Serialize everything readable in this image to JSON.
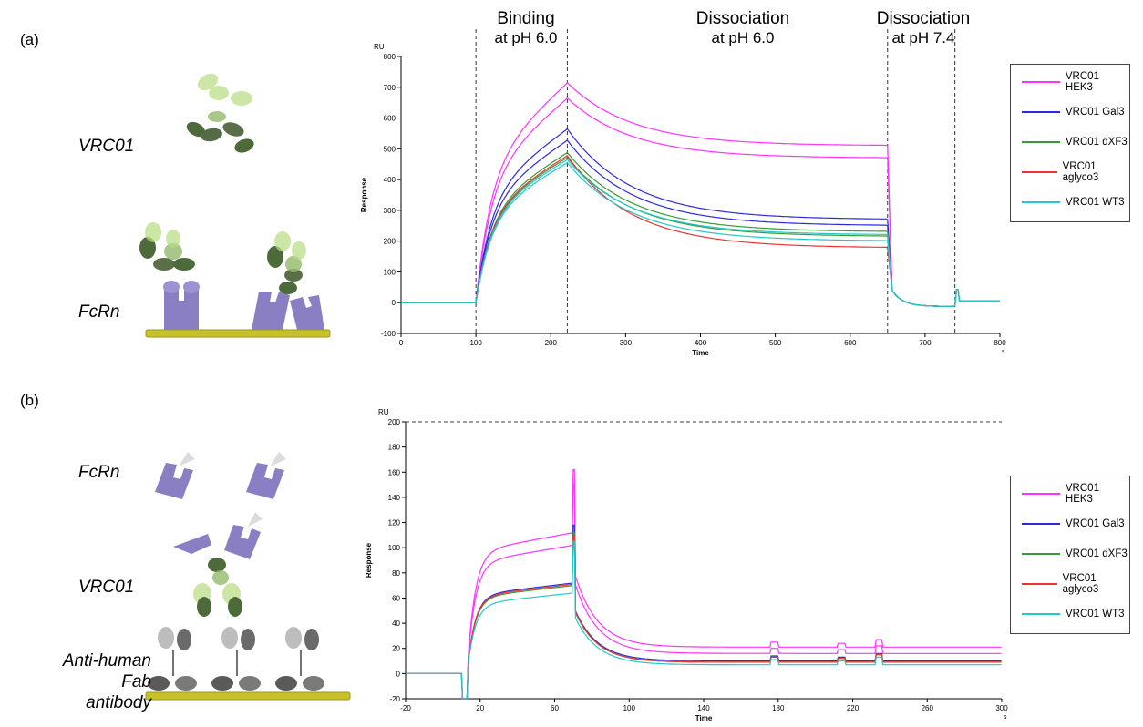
{
  "panel_labels": {
    "a": "(a)",
    "b": "(b)"
  },
  "diagram_a": {
    "label_antibody": "VRC01",
    "label_receptor": "FcRn"
  },
  "diagram_b": {
    "label_receptor": "FcRn",
    "label_antibody": "VRC01",
    "label_capture_l1": "Anti-human Fab",
    "label_capture_l2": "antibody"
  },
  "phases_a": [
    {
      "line1": "Binding",
      "line2": "at pH 6.0"
    },
    {
      "line1": "Dissociation",
      "line2": "at pH 6.0"
    },
    {
      "line1": "Dissociation",
      "line2": "at pH 7.4"
    }
  ],
  "colors": {
    "VRC01 HEK3": "#ff33ff",
    "VRC01 Gal3": "#2b2bdd",
    "VRC01 dXF3": "#3a9a3a",
    "VRC01 aglyco3": "#ee3333",
    "VRC01 WT3": "#22c8cc"
  },
  "chart_data": [
    {
      "type": "line",
      "panel": "(a)",
      "ylabel": "Response",
      "yunit": "RU",
      "xlabel": "Time",
      "xunit": "s",
      "xlim": [
        0,
        800
      ],
      "ylim": [
        -100,
        800
      ],
      "xticks": [
        0,
        100,
        200,
        300,
        400,
        500,
        600,
        700,
        800
      ],
      "yticks": [
        -100,
        0,
        100,
        200,
        300,
        400,
        500,
        600,
        700,
        800
      ],
      "vlines": [
        100,
        222,
        650,
        740
      ],
      "legend_position": "right",
      "series": [
        {
          "name": "VRC01 HEK3",
          "curves": [
            {
              "peak": 715,
              "end": 510
            },
            {
              "peak": 665,
              "end": 470
            }
          ]
        },
        {
          "name": "VRC01 Gal3",
          "curves": [
            {
              "peak": 565,
              "end": 270
            },
            {
              "peak": 528,
              "end": 250
            }
          ]
        },
        {
          "name": "VRC01 dXF3",
          "curves": [
            {
              "peak": 488,
              "end": 230
            },
            {
              "peak": 472,
              "end": 215
            }
          ]
        },
        {
          "name": "VRC01 aglyco3",
          "curves": [
            {
              "peak": 478,
              "end": 178
            }
          ]
        },
        {
          "name": "VRC01 WT3",
          "curves": [
            {
              "peak": 465,
              "end": 220
            },
            {
              "peak": 455,
              "end": 200
            }
          ]
        }
      ]
    },
    {
      "type": "line",
      "panel": "(b)",
      "ylabel": "Response",
      "yunit": "RU",
      "xlabel": "Time",
      "xunit": "s",
      "xlim": [
        -20,
        300
      ],
      "ylim": [
        -20,
        200
      ],
      "xticks": [
        -20,
        20,
        60,
        100,
        140,
        180,
        220,
        260,
        300
      ],
      "yticks": [
        -20,
        0,
        20,
        40,
        60,
        80,
        100,
        120,
        140,
        160,
        180,
        200
      ],
      "hline": 200,
      "legend_position": "right",
      "series": [
        {
          "name": "VRC01 HEK3",
          "curves": [
            {
              "plateau": 112,
              "spike": 162,
              "end": 21
            },
            {
              "plateau": 102,
              "spike": 150,
              "end": 16
            }
          ]
        },
        {
          "name": "VRC01 Gal3",
          "curves": [
            {
              "plateau": 72,
              "spike": 118,
              "end": 10
            }
          ]
        },
        {
          "name": "VRC01 dXF3",
          "curves": [
            {
              "plateau": 70,
              "spike": 112,
              "end": 9
            }
          ]
        },
        {
          "name": "VRC01 aglyco3",
          "curves": [
            {
              "plateau": 71,
              "spike": 110,
              "end": 9
            }
          ]
        },
        {
          "name": "VRC01 WT3",
          "curves": [
            {
              "plateau": 64,
              "spike": 105,
              "end": 7
            }
          ]
        }
      ]
    }
  ]
}
